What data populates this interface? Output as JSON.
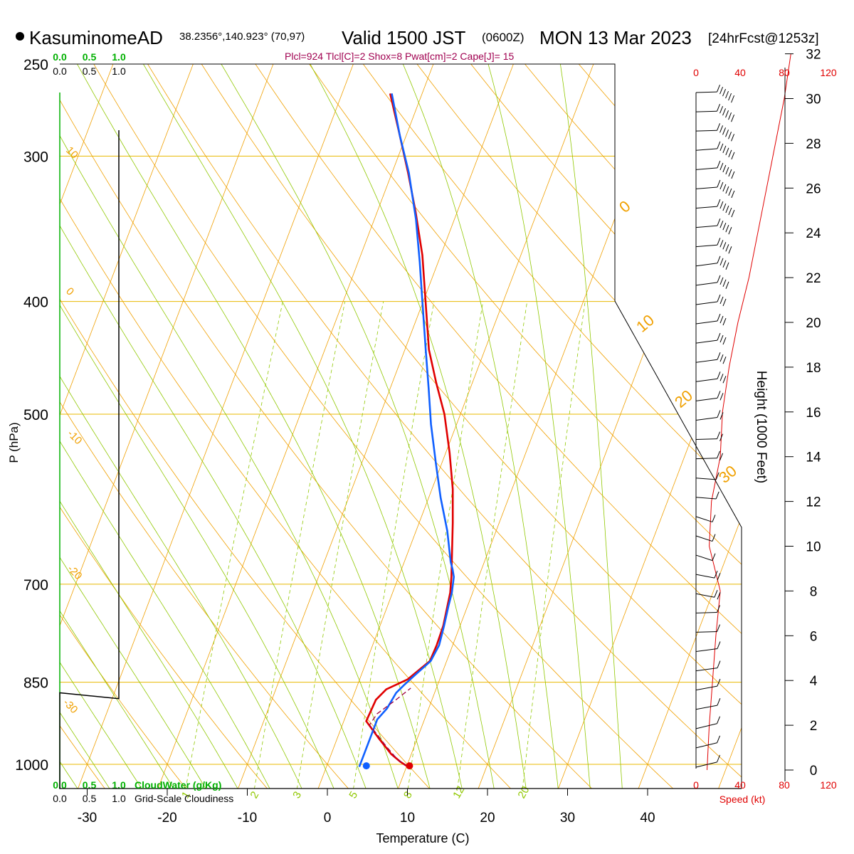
{
  "header": {
    "station": "KasuminomeAD",
    "coords": "38.2356°,140.923° (70,97)",
    "valid_time": "Valid 1500 JST",
    "utc": "(0600Z)",
    "date": "MON 13 Mar 2023",
    "forecast": "[24hrFcst@1253z]",
    "indices": "Plcl=924 Tlcl[C]=2 Shox=8 Pwat[cm]=2 Cape[J]= 15"
  },
  "labels": {
    "cloudwater": "CloudWater (g/Kg)",
    "cloudiness": "Grid-Scale Cloudiness",
    "speed": "Speed (kt)"
  },
  "colors": {
    "temperature": "#e00000",
    "dewpoint": "#1060ff",
    "grid": "#e8b800",
    "isotherm": "#f0a000",
    "dry_adiabat": "#f0a000",
    "moist_adiabat": "#90c800",
    "mixing_ratio": "#90c800",
    "parcel": "#a00040",
    "cloud_scale": "#00b000",
    "speed": "#e00000",
    "title_accent": "#a00050"
  },
  "chart_data": {
    "type": "line",
    "title": "KasuminomeAD",
    "xlabel": "Temperature (C)",
    "ylabel": "P (hPa)",
    "y2label": "Height (1000 Feet)",
    "xlim": [
      -33,
      47
    ],
    "ylim": [
      1050,
      250
    ],
    "y_scale": "log",
    "x_ticks": [
      "-30",
      "-20",
      "-10",
      "0",
      "10",
      "20",
      "30",
      "40"
    ],
    "pressure_ticks": [
      "250",
      "300",
      "400",
      "500",
      "700",
      "850",
      "1000"
    ],
    "height_ticks": [
      "0",
      "2",
      "4",
      "6",
      "8",
      "10",
      "12",
      "14",
      "16",
      "18",
      "20",
      "22",
      "24",
      "26",
      "28",
      "30",
      "32"
    ],
    "cloud_scale_top": [
      "0.0",
      "0.5",
      "1.0"
    ],
    "cloud_scale_green_bottom": [
      "0.0",
      "0.5",
      "1.0"
    ],
    "cloud_scale_black": [
      "0.0",
      "0.5",
      "1.0"
    ],
    "speed_ticks": [
      "0",
      "40",
      "80",
      "120"
    ],
    "mixing_ratio_labels": [
      "1",
      "2",
      "3",
      "5",
      "8",
      "12",
      "20"
    ],
    "dry_adiabat_labels": [
      "10",
      "0",
      "-10",
      "-20",
      "-30"
    ],
    "moist_labels": [
      "0",
      "10",
      "20",
      "30"
    ],
    "series": [
      {
        "name": "",
        "role": "temperature",
        "points": [
          [
            10.2,
            1005
          ],
          [
            9,
            995
          ],
          [
            7.5,
            980
          ],
          [
            5.2,
            950
          ],
          [
            2.8,
            918
          ],
          [
            3,
            880
          ],
          [
            3.8,
            862
          ],
          [
            6,
            845
          ],
          [
            7.9,
            815
          ],
          [
            8,
            790
          ],
          [
            7.9,
            760
          ],
          [
            7.2,
            712
          ],
          [
            6.6,
            690
          ],
          [
            5.6,
            660
          ],
          [
            4.2,
            620
          ],
          [
            2.6,
            580
          ],
          [
            0.5,
            540
          ],
          [
            -2,
            500
          ],
          [
            -4.5,
            470
          ],
          [
            -7,
            440
          ],
          [
            -9.7,
            400
          ],
          [
            -12.3,
            365
          ],
          [
            -15.2,
            335
          ],
          [
            -18,
            310
          ],
          [
            -21.2,
            285
          ],
          [
            -24,
            265
          ]
        ]
      },
      {
        "name": "",
        "role": "dewpoint",
        "points": [
          [
            4.1,
            1005
          ],
          [
            4.1,
            980
          ],
          [
            4.1,
            950
          ],
          [
            4.1,
            915
          ],
          [
            4.8,
            895
          ],
          [
            5.2,
            868
          ],
          [
            5.8,
            855
          ],
          [
            6.6,
            840
          ],
          [
            8,
            815
          ],
          [
            8.3,
            790
          ],
          [
            8,
            760
          ],
          [
            7.6,
            730
          ],
          [
            7.4,
            712
          ],
          [
            6.9,
            690
          ],
          [
            6.4,
            680
          ],
          [
            5.8,
            670
          ],
          [
            3.9,
            630
          ],
          [
            1.5,
            590
          ],
          [
            -0.8,
            550
          ],
          [
            -3.2,
            510
          ],
          [
            -5.2,
            475
          ],
          [
            -7.4,
            440
          ],
          [
            -10.1,
            400
          ],
          [
            -12.3,
            370
          ],
          [
            -14.8,
            340
          ],
          [
            -17.9,
            310
          ],
          [
            -20.8,
            288
          ],
          [
            -23.8,
            265
          ]
        ]
      },
      {
        "name": "",
        "role": "parcel",
        "points": [
          [
            10.2,
            1005
          ],
          [
            8.5,
            990
          ],
          [
            6.5,
            965
          ],
          [
            4.6,
            940
          ],
          [
            3.4,
            925
          ],
          [
            3.8,
            905
          ],
          [
            5.5,
            880
          ],
          [
            6.8,
            860
          ]
        ]
      }
    ],
    "height_profile_kft": [
      0,
      2,
      4,
      6,
      8,
      10,
      12,
      14,
      16,
      18,
      20,
      22,
      24,
      26,
      28,
      30,
      32
    ],
    "wind_speed_kt": [
      10,
      12,
      15,
      18,
      22,
      12,
      14,
      22,
      24,
      30,
      38,
      48,
      56,
      64,
      72,
      80,
      86
    ],
    "wind_dir_deg": [
      260,
      265,
      270,
      280,
      300,
      310,
      290,
      280,
      270,
      270,
      270,
      270,
      275,
      275,
      275,
      280,
      280
    ],
    "cloudiness_profile": [
      [
        0,
        1050
      ],
      [
        0,
        868
      ],
      [
        0.985,
        878
      ],
      [
        1.0,
        878
      ],
      [
        1.0,
        285
      ]
    ]
  }
}
